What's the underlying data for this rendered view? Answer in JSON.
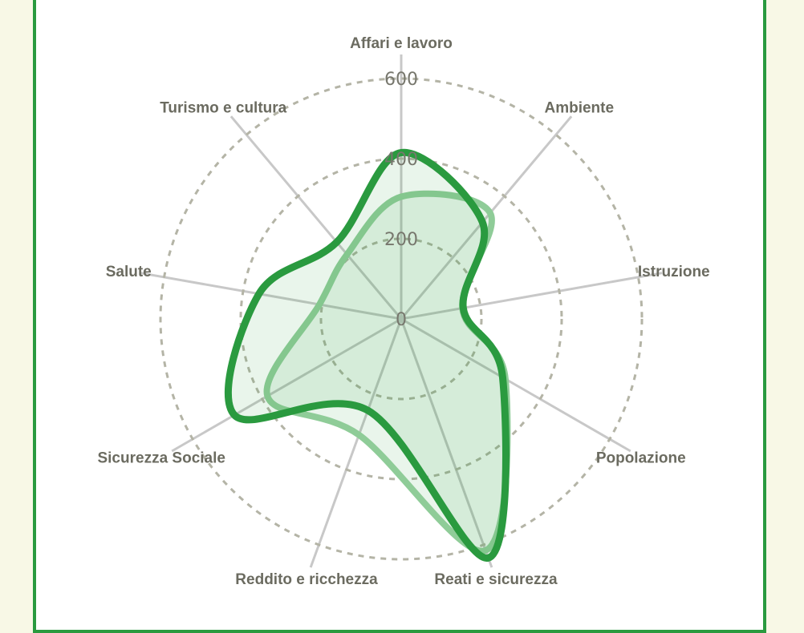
{
  "chart_data": {
    "type": "radar",
    "categories": [
      "Affari e lavoro",
      "Ambiente",
      "Istruzione",
      "Popolazione",
      "Reati e sicurezza",
      "Reddito e ricchezza",
      "Sicurezza Sociale",
      "Salute",
      "Turismo e cultura"
    ],
    "series": [
      {
        "values": [
          305,
          345,
          155,
          300,
          615,
          308,
          385,
          207,
          210
        ],
        "color": "#8fcc98"
      },
      {
        "values": [
          415,
          315,
          157,
          292,
          635,
          243,
          480,
          360,
          250
        ],
        "color": "#2a9a3f"
      }
    ],
    "rlim": [
      0,
      600
    ],
    "ticks": [
      "0",
      "200",
      "400",
      "600"
    ],
    "grid": "dashed circles",
    "fill_color": "#2a9a3f",
    "background": "#f8f8e6"
  }
}
